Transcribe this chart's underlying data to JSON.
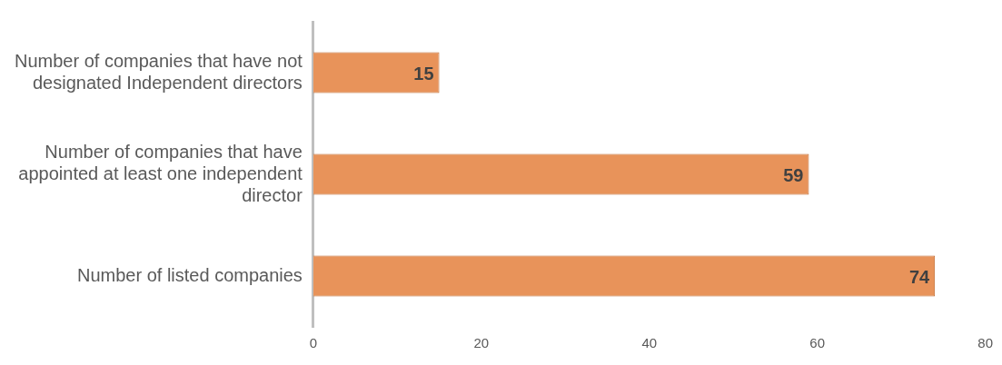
{
  "chart_data": {
    "type": "bar",
    "orientation": "horizontal",
    "categories": [
      "Number of companies that have not designated Independent directors",
      "Number of companies that have appointed at least one independent director",
      "Number of listed companies"
    ],
    "values": [
      15,
      59,
      74
    ],
    "color": "#e8935a",
    "xlim": [
      0,
      80
    ],
    "xticks": [
      0,
      20,
      40,
      60,
      80
    ],
    "grid": false,
    "legend": false,
    "data_labels": true
  }
}
